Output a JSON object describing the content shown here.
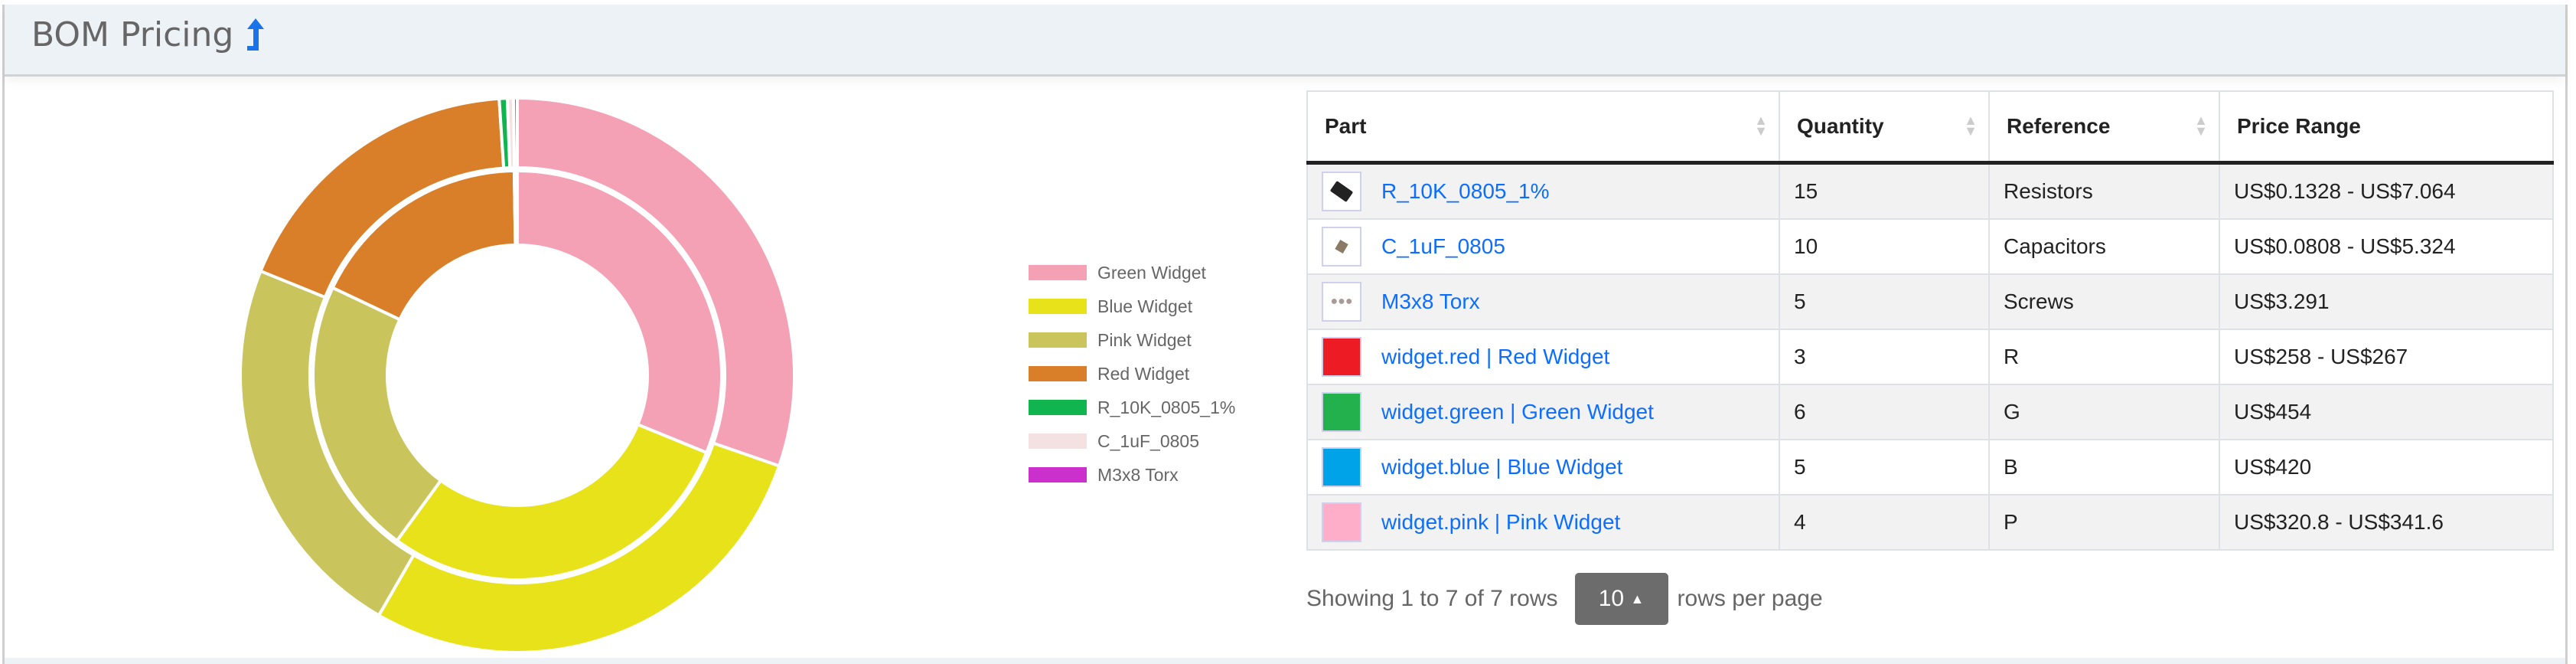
{
  "header": {
    "title": "BOM Pricing",
    "icon": "arrow-up-icon",
    "icon_color": "#1a73e8"
  },
  "chart_data": {
    "type": "pie",
    "variant": "nested-donut",
    "legend_position": "right",
    "labels": [
      "Green Widget",
      "Blue Widget",
      "Pink Widget",
      "Red Widget",
      "R_10K_0805_1%",
      "C_1uF_0805",
      "M3x8 Torx"
    ],
    "colors": [
      "#f4a0b5",
      "#e8e21a",
      "#c9c55c",
      "#d97f2a",
      "#10b54f",
      "#f4e2e2",
      "#cc30cc"
    ],
    "series": [
      {
        "ring": "outer",
        "values": [
          454,
          420,
          341.6,
          267,
          7.064,
          5.324,
          3.291
        ]
      },
      {
        "ring": "inner",
        "values": [
          454,
          420,
          320.8,
          258,
          0.1328,
          0.0808,
          3.291
        ]
      }
    ]
  },
  "table": {
    "columns": [
      "Part",
      "Quantity",
      "Reference",
      "Price Range"
    ],
    "rows": [
      {
        "part": "R_10K_0805_1%",
        "thumb": "resistor-image",
        "quantity": "15",
        "reference": "Resistors",
        "price": "US$0.1328 - US$7.064"
      },
      {
        "part": "C_1uF_0805",
        "thumb": "capacitor-image",
        "quantity": "10",
        "reference": "Capacitors",
        "price": "US$0.0808 - US$5.324"
      },
      {
        "part": "M3x8 Torx",
        "thumb": "screws-image",
        "quantity": "5",
        "reference": "Screws",
        "price": "US$3.291"
      },
      {
        "part": "widget.red | Red Widget",
        "thumb": "#ed1c24",
        "quantity": "3",
        "reference": "R",
        "price": "US$258 - US$267"
      },
      {
        "part": "widget.green | Green Widget",
        "thumb": "#22b14c",
        "quantity": "6",
        "reference": "G",
        "price": "US$454"
      },
      {
        "part": "widget.blue | Blue Widget",
        "thumb": "#00a2e8",
        "quantity": "5",
        "reference": "B",
        "price": "US$420"
      },
      {
        "part": "widget.pink | Pink Widget",
        "thumb": "#ffaec9",
        "quantity": "4",
        "reference": "P",
        "price": "US$320.8 - US$341.6"
      }
    ]
  },
  "pagination": {
    "summary": "Showing 1 to 7 of 7 rows",
    "page_size": "10",
    "suffix": "rows per page"
  }
}
